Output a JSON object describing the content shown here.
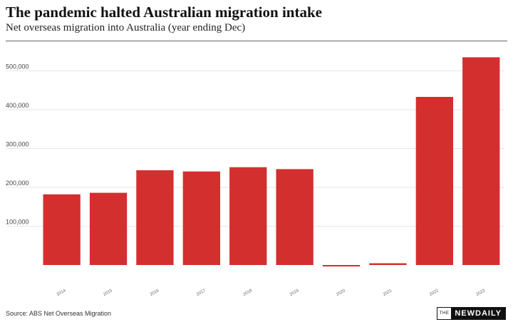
{
  "header": {
    "title": "The pandemic halted Australian migration intake",
    "subtitle": "Net overseas migration into Australia (year ending Dec)"
  },
  "chart_data": {
    "type": "bar",
    "categories": [
      "2014",
      "2015",
      "2016",
      "2017",
      "2018",
      "2019",
      "2020",
      "2021",
      "2022",
      "2023"
    ],
    "values": [
      182000,
      186000,
      244000,
      241000,
      252000,
      247000,
      -3500,
      4500,
      433000,
      535000
    ],
    "ylim": [
      -10000,
      565000
    ],
    "yticks": [
      100000,
      200000,
      300000,
      400000,
      500000
    ],
    "ytick_labels": [
      "100,000",
      "200,000",
      "300,000",
      "400,000",
      "500,000"
    ],
    "grid": true,
    "bar_color": "#d32f2f",
    "grid_color": "#e6e6e6"
  },
  "footer": {
    "source": "Source: ABS Net Overseas Migration",
    "logo_prefix": "THE",
    "logo_brand": "NEWDAILY"
  }
}
